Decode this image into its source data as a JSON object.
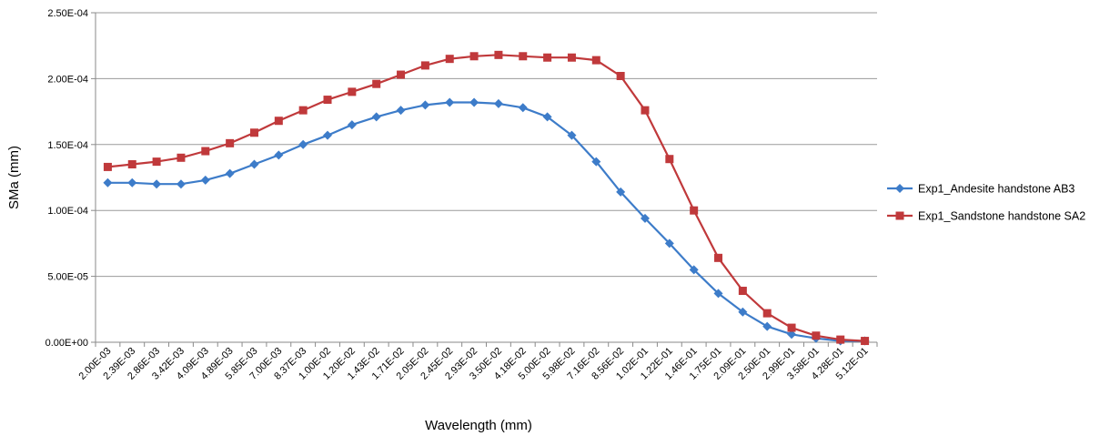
{
  "chart_data": {
    "type": "line",
    "title": "",
    "xlabel": "Wavelength (mm)",
    "ylabel": "SMa (mm)",
    "ylim": [
      0,
      0.00025
    ],
    "yticks": [
      "0.00E+00",
      "5.00E-05",
      "1.00E-04",
      "1.50E-04",
      "2.00E-04",
      "2.50E-04"
    ],
    "grid": "horizontal",
    "legend_position": "right",
    "categories": [
      "2.00E-03",
      "2.39E-03",
      "2.86E-03",
      "3.42E-03",
      "4.09E-03",
      "4.89E-03",
      "5.85E-03",
      "7.00E-03",
      "8.37E-03",
      "1.00E-02",
      "1.20E-02",
      "1.43E-02",
      "1.71E-02",
      "2.05E-02",
      "2.45E-02",
      "2.93E-02",
      "3.50E-02",
      "4.18E-02",
      "5.00E-02",
      "5.98E-02",
      "7.16E-02",
      "8.56E-02",
      "1.02E-01",
      "1.22E-01",
      "1.46E-01",
      "1.75E-01",
      "2.09E-01",
      "2.50E-01",
      "2.99E-01",
      "3.58E-01",
      "4.28E-01",
      "5.12E-01"
    ],
    "series": [
      {
        "name": "Exp1_Andesite handstone AB3",
        "color": "#3d7cc9",
        "marker": "diamond",
        "values": [
          0.000121,
          0.000121,
          0.00012,
          0.00012,
          0.000123,
          0.000128,
          0.000135,
          0.000142,
          0.00015,
          0.000157,
          0.000165,
          0.000171,
          0.000176,
          0.00018,
          0.000182,
          0.000182,
          0.000181,
          0.000178,
          0.000171,
          0.000157,
          0.000137,
          0.000114,
          9.4e-05,
          7.5e-05,
          5.5e-05,
          3.7e-05,
          2.3e-05,
          1.2e-05,
          6e-06,
          3e-06,
          1e-06,
          1e-06
        ]
      },
      {
        "name": "Exp1_Sandstone handstone SA2",
        "color": "#c0393b",
        "marker": "square",
        "values": [
          0.000133,
          0.000135,
          0.000137,
          0.00014,
          0.000145,
          0.000151,
          0.000159,
          0.000168,
          0.000176,
          0.000184,
          0.00019,
          0.000196,
          0.000203,
          0.00021,
          0.000215,
          0.000217,
          0.000218,
          0.000217,
          0.000216,
          0.000216,
          0.000214,
          0.000202,
          0.000176,
          0.000139,
          0.0001,
          6.4e-05,
          3.9e-05,
          2.2e-05,
          1.1e-05,
          5e-06,
          2e-06,
          1e-06
        ]
      }
    ]
  }
}
